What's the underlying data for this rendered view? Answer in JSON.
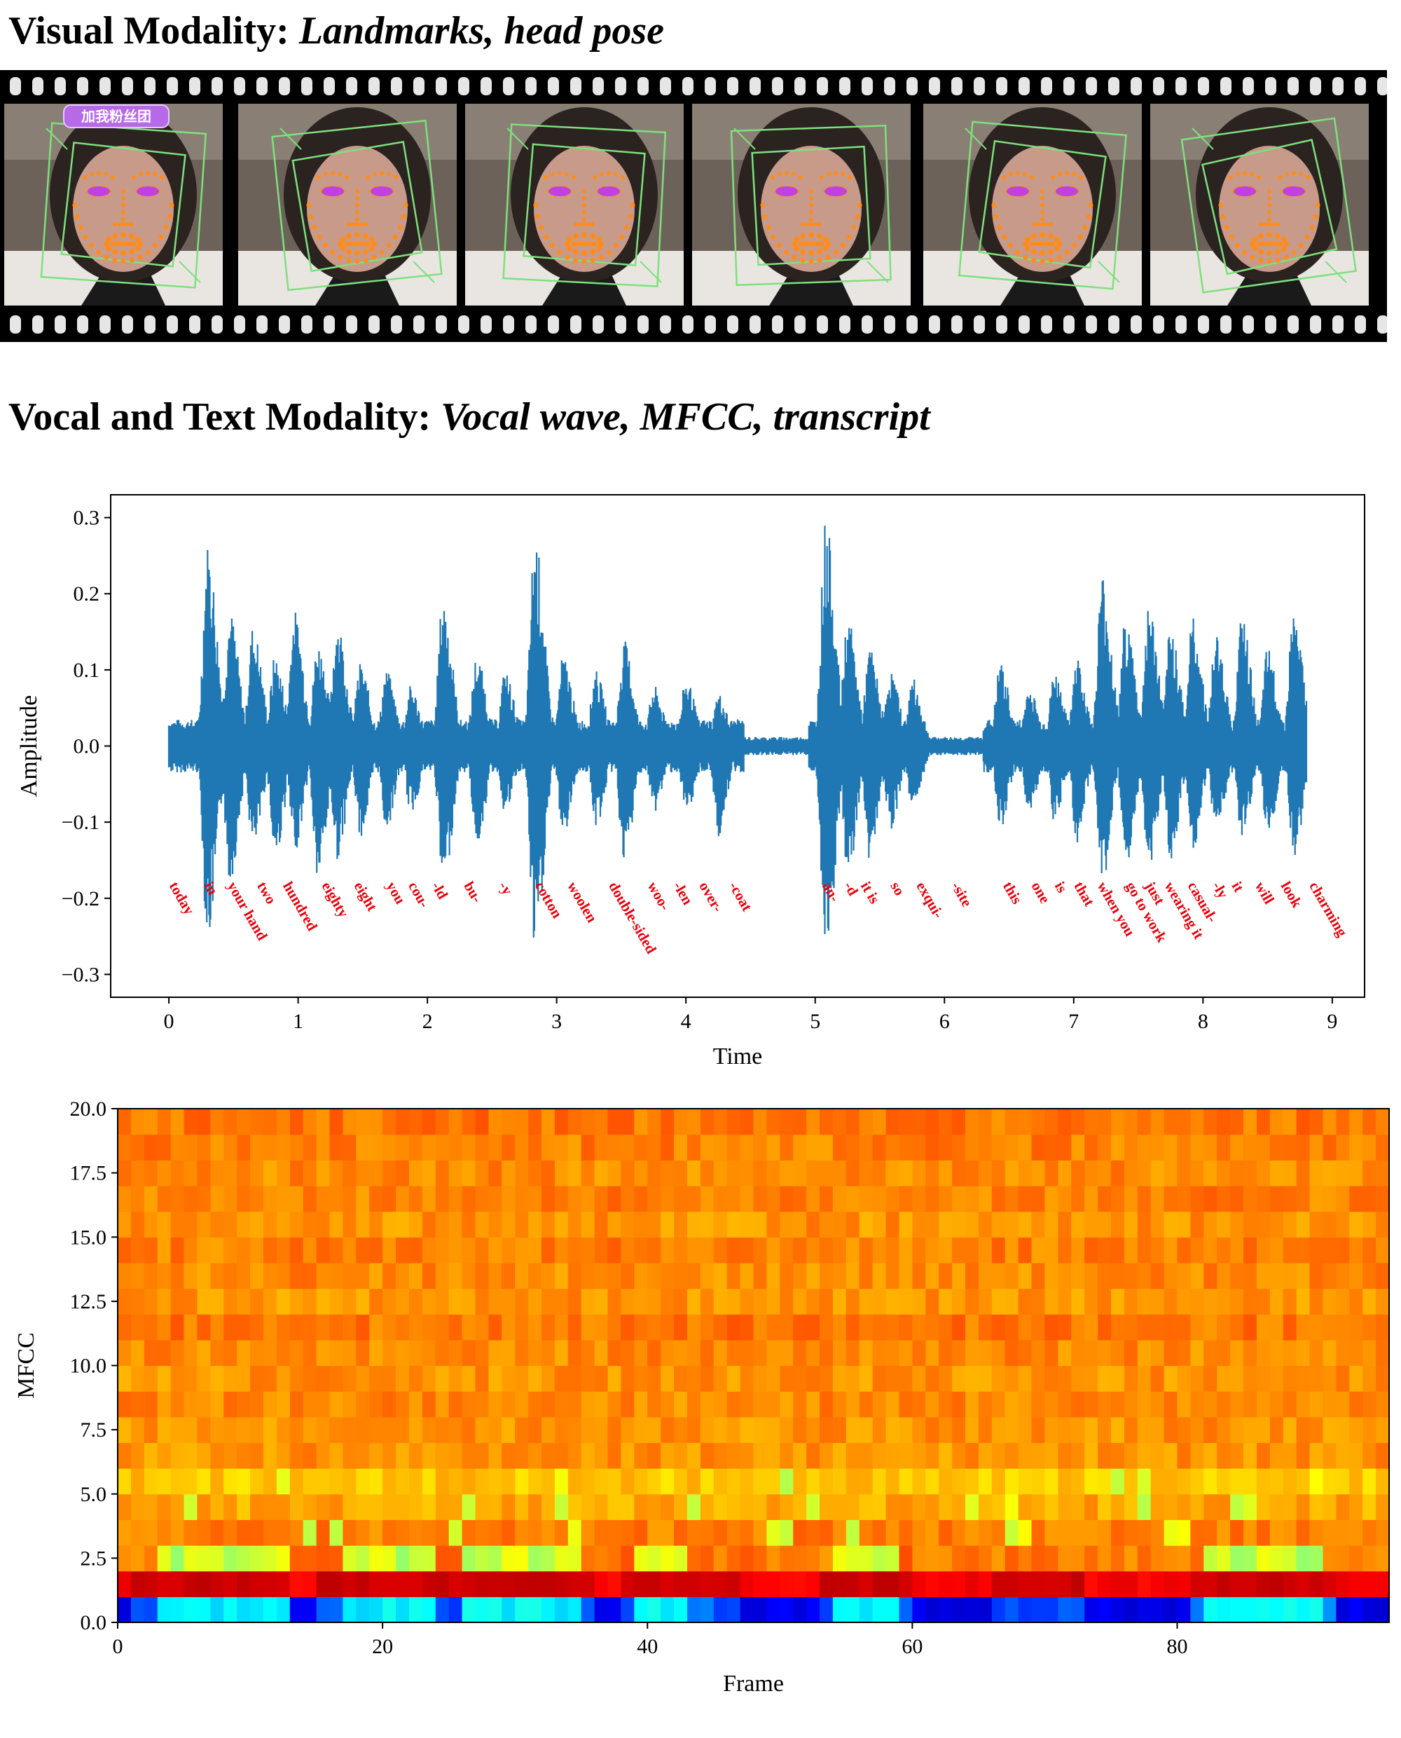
{
  "headings": {
    "visual_title": "Visual Modality:",
    "visual_subtitle": "Landmarks, head pose",
    "vocal_title": "Vocal and Text Modality:",
    "vocal_subtitle": "Vocal wave, MFCC, transcript"
  },
  "filmstrip": {
    "frame_count": 6,
    "overlay_badge": "加我粉丝团",
    "colors": {
      "film": "#000000",
      "sprocket": "#e6e6e6",
      "landmark": "#ff8c1a",
      "pose_box": "#7ee07e",
      "eye": "#c040e0"
    }
  },
  "chart_data": [
    {
      "type": "line",
      "title": "",
      "xlabel": "Time",
      "ylabel": "Amplitude",
      "xlim": [
        -0.45,
        9.25
      ],
      "ylim": [
        -0.33,
        0.33
      ],
      "xticks": [
        0,
        1,
        2,
        3,
        4,
        5,
        6,
        7,
        8,
        9
      ],
      "yticks": [
        -0.3,
        -0.2,
        -0.1,
        0.0,
        0.1,
        0.2,
        0.3
      ],
      "ytick_labels": [
        "−0.3",
        "−0.2",
        "−0.1",
        "0.0",
        "0.1",
        "0.2",
        "0.3"
      ],
      "grid": false,
      "color": "#1f77b4",
      "duration": 8.8,
      "peaks": [
        {
          "t": 0.3,
          "max": 0.27,
          "min": -0.26
        },
        {
          "t": 0.47,
          "max": 0.18,
          "min": -0.18
        },
        {
          "t": 0.65,
          "max": 0.16,
          "min": -0.14
        },
        {
          "t": 0.82,
          "max": 0.12,
          "min": -0.15
        },
        {
          "t": 0.97,
          "max": 0.18,
          "min": -0.14
        },
        {
          "t": 1.15,
          "max": 0.14,
          "min": -0.18
        },
        {
          "t": 1.3,
          "max": 0.17,
          "min": -0.15
        },
        {
          "t": 1.48,
          "max": 0.11,
          "min": -0.12
        },
        {
          "t": 1.68,
          "max": 0.1,
          "min": -0.11
        },
        {
          "t": 1.87,
          "max": 0.08,
          "min": -0.09
        },
        {
          "t": 2.12,
          "max": 0.2,
          "min": -0.19
        },
        {
          "t": 2.38,
          "max": 0.12,
          "min": -0.13
        },
        {
          "t": 2.6,
          "max": 0.1,
          "min": -0.09
        },
        {
          "t": 2.83,
          "max": 0.28,
          "min": -0.28
        },
        {
          "t": 3.05,
          "max": 0.12,
          "min": -0.12
        },
        {
          "t": 3.3,
          "max": 0.1,
          "min": -0.11
        },
        {
          "t": 3.52,
          "max": 0.14,
          "min": -0.16
        },
        {
          "t": 3.75,
          "max": 0.08,
          "min": -0.09
        },
        {
          "t": 4.0,
          "max": 0.09,
          "min": -0.1
        },
        {
          "t": 4.25,
          "max": 0.07,
          "min": -0.12
        },
        {
          "t": 5.08,
          "max": 0.3,
          "min": -0.3
        },
        {
          "t": 5.25,
          "max": 0.17,
          "min": -0.18
        },
        {
          "t": 5.42,
          "max": 0.13,
          "min": -0.15
        },
        {
          "t": 5.58,
          "max": 0.1,
          "min": -0.11
        },
        {
          "t": 5.75,
          "max": 0.09,
          "min": -0.08
        },
        {
          "t": 6.43,
          "max": 0.11,
          "min": -0.11
        },
        {
          "t": 6.65,
          "max": 0.08,
          "min": -0.09
        },
        {
          "t": 6.85,
          "max": 0.1,
          "min": -0.1
        },
        {
          "t": 7.02,
          "max": 0.12,
          "min": -0.13
        },
        {
          "t": 7.22,
          "max": 0.23,
          "min": -0.18
        },
        {
          "t": 7.4,
          "max": 0.17,
          "min": -0.17
        },
        {
          "t": 7.58,
          "max": 0.19,
          "min": -0.16
        },
        {
          "t": 7.75,
          "max": 0.16,
          "min": -0.15
        },
        {
          "t": 7.92,
          "max": 0.17,
          "min": -0.14
        },
        {
          "t": 8.1,
          "max": 0.15,
          "min": -0.12
        },
        {
          "t": 8.3,
          "max": 0.17,
          "min": -0.13
        },
        {
          "t": 8.5,
          "max": 0.13,
          "min": -0.12
        },
        {
          "t": 8.7,
          "max": 0.18,
          "min": -0.15
        }
      ],
      "words": [
        {
          "text": "today",
          "t": 0.0
        },
        {
          "text": "in",
          "t": 0.27
        },
        {
          "text": "your hand",
          "t": 0.45
        },
        {
          "text": "two",
          "t": 0.68
        },
        {
          "text": "hundred",
          "t": 0.88
        },
        {
          "text": "eighty",
          "t": 1.18
        },
        {
          "text": "eight",
          "t": 1.43
        },
        {
          "text": "you",
          "t": 1.68
        },
        {
          "text": "cou-",
          "t": 1.85
        },
        {
          "text": "-ld",
          "t": 2.03
        },
        {
          "text": "bu-",
          "t": 2.28
        },
        {
          "text": "-y",
          "t": 2.55
        },
        {
          "text": "cotton",
          "t": 2.83
        },
        {
          "text": "woolen",
          "t": 3.08
        },
        {
          "text": "double-sided",
          "t": 3.4
        },
        {
          "text": "woo-",
          "t": 3.7
        },
        {
          "text": "-len",
          "t": 3.9
        },
        {
          "text": "over-",
          "t": 4.1
        },
        {
          "text": "-coat",
          "t": 4.33
        },
        {
          "text": "an-",
          "t": 5.05
        },
        {
          "text": "-d",
          "t": 5.22
        },
        {
          "text": "it is",
          "t": 5.35
        },
        {
          "text": "so",
          "t": 5.58
        },
        {
          "text": "exqui-",
          "t": 5.78
        },
        {
          "text": "-site",
          "t": 6.05
        },
        {
          "text": "this",
          "t": 6.45
        },
        {
          "text": "one",
          "t": 6.67
        },
        {
          "text": "is",
          "t": 6.85
        },
        {
          "text": "that",
          "t": 7.0
        },
        {
          "text": "when you",
          "t": 7.18
        },
        {
          "text": "go to work",
          "t": 7.4
        },
        {
          "text": "just",
          "t": 7.55
        },
        {
          "text": "wearing it",
          "t": 7.7
        },
        {
          "text": "casual-",
          "t": 7.88
        },
        {
          "text": "-ly",
          "t": 8.07
        },
        {
          "text": "it",
          "t": 8.22
        },
        {
          "text": "will",
          "t": 8.4
        },
        {
          "text": "look",
          "t": 8.6
        },
        {
          "text": "charming",
          "t": 8.82
        }
      ]
    },
    {
      "type": "heatmap",
      "title": "",
      "xlabel": "Frame",
      "ylabel": "MFCC",
      "xlim": [
        0,
        96
      ],
      "ylim": [
        0,
        20
      ],
      "xticks": [
        0,
        20,
        40,
        60,
        80
      ],
      "yticks": [
        0.0,
        2.5,
        5.0,
        7.5,
        10.0,
        12.5,
        15.0,
        17.5,
        20.0
      ],
      "ytick_labels": [
        "0.0",
        "2.5",
        "5.0",
        "7.5",
        "10.0",
        "12.5",
        "15.0",
        "17.5",
        "20.0"
      ],
      "grid": false,
      "colormap": "jet",
      "frames": 96,
      "coefficients": 20,
      "row_levels": [
        0.22,
        0.9,
        0.72,
        0.75,
        0.71,
        0.68,
        0.73,
        0.73,
        0.74,
        0.73,
        0.74,
        0.76,
        0.73,
        0.74,
        0.75,
        0.73,
        0.75,
        0.74,
        0.75,
        0.76
      ],
      "dark_frames": [
        0,
        13,
        14,
        36,
        37,
        47,
        48,
        49,
        50,
        51,
        52,
        60,
        61,
        62,
        63,
        64,
        65,
        73,
        74,
        75,
        76,
        77,
        78,
        79,
        80,
        92,
        93,
        94,
        95
      ],
      "light_frames": [
        3,
        4,
        5,
        6,
        7,
        8,
        9,
        10,
        11,
        12,
        17,
        18,
        19,
        20,
        21,
        22,
        23,
        26,
        27,
        28,
        29,
        30,
        31,
        32,
        33,
        34,
        39,
        40,
        41,
        42,
        54,
        55,
        56,
        57,
        58,
        82,
        83,
        84,
        85,
        86,
        87,
        88,
        89,
        90
      ]
    }
  ]
}
